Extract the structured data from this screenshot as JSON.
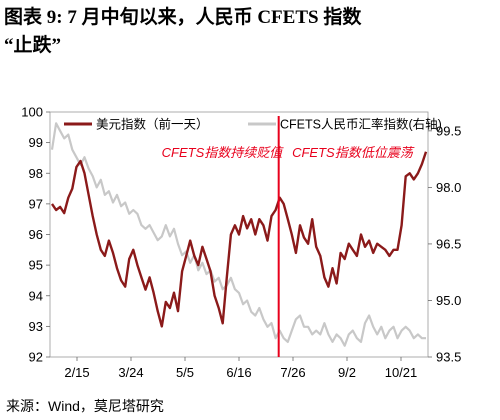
{
  "title": {
    "line1": "图表 9: 7 月中旬以来，人民币 CFETS 指数",
    "line2": "“止跌”"
  },
  "source": "来源：Wind，莫尼塔研究",
  "colors": {
    "usd": "#8b1a1a",
    "cfets": "#c8c8c8",
    "divider": "#e8001c",
    "annotation": "#e8001c"
  },
  "chart_data": {
    "type": "line",
    "x_ticks": [
      "2/15",
      "3/24",
      "5/5",
      "6/16",
      "7/26",
      "9/2",
      "10/21"
    ],
    "ylim_left": [
      92,
      100
    ],
    "yticks_left": [
      92,
      93,
      94,
      95,
      96,
      97,
      98,
      99,
      100
    ],
    "ylim_right": [
      93.5,
      100.0
    ],
    "yticks_right": [
      93.5,
      95.0,
      96.5,
      98.0,
      99.5
    ],
    "legend": {
      "placement": "top",
      "entries": [
        "美元指数（前一天）",
        "CFETS人民币汇率指数(右轴)"
      ]
    },
    "annotations": [
      "CFETS指数持续贬值",
      "CFETS指数低位震荡"
    ],
    "divider_label": "divider",
    "series": [
      {
        "name": "美元指数（前一天）",
        "axis": "left",
        "values": [
          97.0,
          96.8,
          96.9,
          96.7,
          97.2,
          97.5,
          98.2,
          98.4,
          98.0,
          97.3,
          96.6,
          96.0,
          95.5,
          95.3,
          95.8,
          95.4,
          94.9,
          94.5,
          94.3,
          95.2,
          95.5,
          95.0,
          94.6,
          94.2,
          94.6,
          94.1,
          93.5,
          93.0,
          93.8,
          93.6,
          94.1,
          93.5,
          94.8,
          95.3,
          95.8,
          95.3,
          95.0,
          95.6,
          95.2,
          94.8,
          94.0,
          93.6,
          93.1,
          94.6,
          96.0,
          96.3,
          96.0,
          96.6,
          96.2,
          96.5,
          96.0,
          96.5,
          96.3,
          95.8,
          96.6,
          96.8,
          97.2,
          97.0,
          96.5,
          96.0,
          95.4,
          96.3,
          95.9,
          95.7,
          96.5,
          95.6,
          95.3,
          94.6,
          94.3,
          94.9,
          94.4,
          95.4,
          95.2,
          95.7,
          95.5,
          95.3,
          96.0,
          95.6,
          95.8,
          95.4,
          95.7,
          95.6,
          95.5,
          95.3,
          95.5,
          95.5,
          96.3,
          97.9,
          98.0,
          97.8,
          98.0,
          98.3,
          98.7
        ]
      },
      {
        "name": "CFETS人民币汇率指数(右轴)",
        "axis": "right",
        "values": [
          99.0,
          99.7,
          99.5,
          99.3,
          99.4,
          99.0,
          98.8,
          98.6,
          98.8,
          98.5,
          98.3,
          98.0,
          98.2,
          97.8,
          97.9,
          97.6,
          97.8,
          97.5,
          97.6,
          97.3,
          97.4,
          97.3,
          97.0,
          96.9,
          97.0,
          96.8,
          96.6,
          96.7,
          97.0,
          96.7,
          96.9,
          96.5,
          96.2,
          96.3,
          96.0,
          96.2,
          95.8,
          96.0,
          95.7,
          95.8,
          95.5,
          95.6,
          95.3,
          95.4,
          95.6,
          95.3,
          95.2,
          94.9,
          95.0,
          94.7,
          94.6,
          94.8,
          94.5,
          94.3,
          94.4,
          94.0,
          94.2,
          94.0,
          93.9,
          94.2,
          94.5,
          94.6,
          94.3,
          94.3,
          94.1,
          94.2,
          94.1,
          94.4,
          94.1,
          93.9,
          94.1,
          94.0,
          93.8,
          94.1,
          94.2,
          94.0,
          93.9,
          94.4,
          94.6,
          94.3,
          94.1,
          94.3,
          94.0,
          94.2,
          94.3,
          94.0,
          94.2,
          94.3,
          94.2,
          94.0,
          94.1,
          94.0,
          94.0
        ]
      }
    ]
  }
}
